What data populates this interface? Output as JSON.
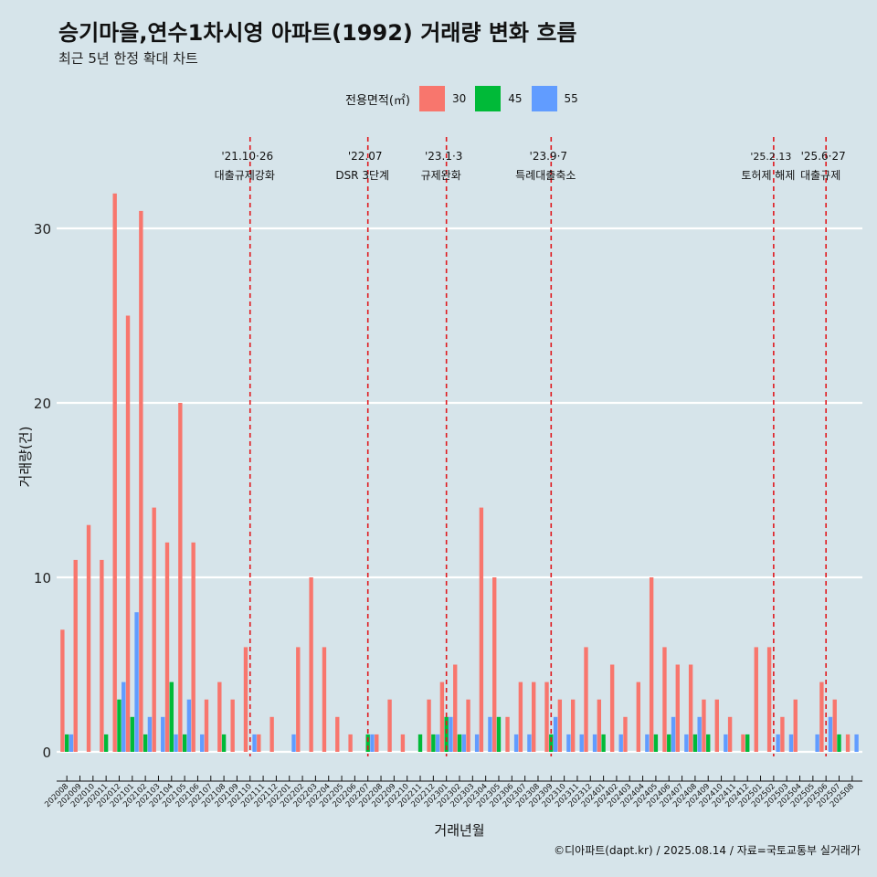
{
  "title": "승기마을,연수1차시영 아파트(1992) 거래량 변화 흐름",
  "subtitle": "최근 5년 한정 확대 차트",
  "caption": "©디아파트(dapt.kr) / 2025.08.14 / 자료=국토교통부 실거래가",
  "legend": {
    "title": "전용면적(㎡)",
    "items": [
      {
        "label": "30",
        "color": "#f8766d"
      },
      {
        "label": "45",
        "color": "#00ba38"
      },
      {
        "label": "55",
        "color": "#619cff"
      }
    ]
  },
  "chart_data": {
    "type": "bar",
    "xlabel": "거래년월",
    "ylabel": "거래량(건)",
    "ylim": [
      0,
      33
    ],
    "yticks": [
      0,
      10,
      20,
      30
    ],
    "grid": true,
    "legend_position": "top",
    "categories": [
      "202008",
      "202009",
      "202010",
      "202011",
      "202012",
      "202101",
      "202102",
      "202103",
      "202104",
      "202105",
      "202106",
      "202107",
      "202108",
      "202109",
      "202110",
      "202111",
      "202112",
      "202201",
      "202202",
      "202203",
      "202204",
      "202205",
      "202206",
      "202207",
      "202208",
      "202209",
      "202210",
      "202211",
      "202212",
      "202301",
      "202302",
      "202303",
      "202304",
      "202305",
      "202306",
      "202307",
      "202308",
      "202309",
      "202310",
      "202311",
      "202312",
      "202401",
      "202402",
      "202403",
      "202404",
      "202405",
      "202406",
      "202407",
      "202408",
      "202409",
      "202410",
      "202411",
      "202412",
      "202501",
      "202502",
      "202503",
      "202504",
      "202505",
      "202506",
      "202507",
      "202508"
    ],
    "series": [
      {
        "name": "30",
        "color": "#f8766d",
        "values": [
          7,
          11,
          13,
          11,
          32,
          25,
          31,
          14,
          12,
          20,
          12,
          3,
          4,
          3,
          6,
          1,
          2,
          0,
          6,
          10,
          6,
          2,
          1,
          0,
          1,
          3,
          1,
          0,
          3,
          4,
          5,
          3,
          14,
          10,
          2,
          4,
          4,
          4,
          3,
          3,
          6,
          3,
          5,
          2,
          4,
          10,
          6,
          5,
          5,
          3,
          3,
          2,
          1,
          6,
          6,
          2,
          3,
          0,
          4,
          3,
          1
        ]
      },
      {
        "name": "45",
        "color": "#00ba38",
        "values": [
          1,
          0,
          0,
          1,
          3,
          2,
          1,
          0,
          4,
          1,
          0,
          0,
          1,
          0,
          0,
          0,
          0,
          0,
          0,
          0,
          0,
          0,
          0,
          1,
          0,
          0,
          0,
          1,
          1,
          2,
          1,
          0,
          0,
          2,
          0,
          0,
          0,
          1,
          0,
          0,
          0,
          1,
          0,
          0,
          0,
          1,
          1,
          0,
          1,
          1,
          0,
          0,
          1,
          0,
          0,
          0,
          0,
          0,
          0,
          1,
          0
        ]
      },
      {
        "name": "55",
        "color": "#619cff",
        "values": [
          1,
          0,
          0,
          0,
          4,
          8,
          2,
          2,
          1,
          3,
          1,
          0,
          0,
          0,
          1,
          0,
          0,
          1,
          0,
          0,
          0,
          0,
          0,
          1,
          0,
          0,
          0,
          0,
          1,
          2,
          1,
          1,
          2,
          0,
          1,
          1,
          0,
          2,
          1,
          1,
          1,
          0,
          1,
          0,
          1,
          0,
          2,
          1,
          2,
          0,
          1,
          0,
          0,
          0,
          1,
          1,
          0,
          1,
          2,
          0,
          1
        ]
      }
    ],
    "annotations": [
      {
        "date": "'21.10·26",
        "label": "대출규제강화",
        "x": "202110"
      },
      {
        "date": "'22.07",
        "label": "DSR 3단계",
        "x": "202207"
      },
      {
        "date": "'23.1·3",
        "label": "규제완화",
        "x": "202301"
      },
      {
        "date": "'23.9·7",
        "label": "특례대출축소",
        "x": "202309"
      },
      {
        "date": "'25.2.13",
        "label": "토허제 해제",
        "x": "202502"
      },
      {
        "date": "'25.6·27",
        "label": "대출규제",
        "x": "202506"
      }
    ]
  }
}
